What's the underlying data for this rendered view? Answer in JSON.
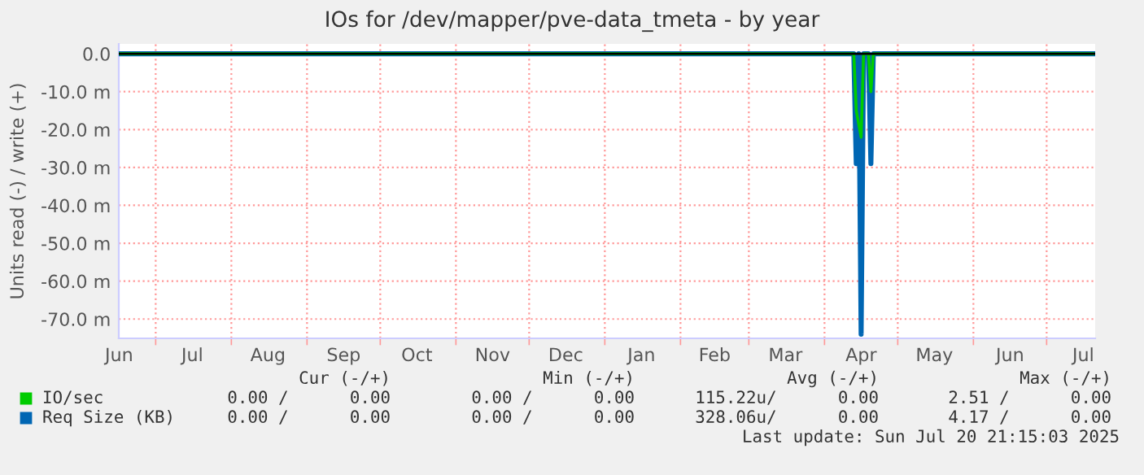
{
  "chart_data": {
    "type": "line",
    "title": "IOs for /dev/mapper/pve-data_tmeta - by year",
    "ylabel": "Units read (-) / write (+)",
    "xlim": [
      "2024-06-15T21:15",
      "2025-07-20T21:15"
    ],
    "xticks": [
      {
        "value": "2024-06-16",
        "label": "Jun"
      },
      {
        "value": "2024-07-01",
        "label": null
      },
      {
        "value": "2024-07-16",
        "label": "Jul"
      },
      {
        "value": "2024-08-01",
        "label": null
      },
      {
        "value": "2024-08-16",
        "label": "Aug"
      },
      {
        "value": "2024-09-01",
        "label": null
      },
      {
        "value": "2024-09-16",
        "label": "Sep"
      },
      {
        "value": "2024-10-01",
        "label": null
      },
      {
        "value": "2024-10-16",
        "label": "Oct"
      },
      {
        "value": "2024-11-01",
        "label": null
      },
      {
        "value": "2024-11-16",
        "label": "Nov"
      },
      {
        "value": "2024-12-01",
        "label": null
      },
      {
        "value": "2024-12-16",
        "label": "Dec"
      },
      {
        "value": "2025-01-01",
        "label": null
      },
      {
        "value": "2025-01-16",
        "label": "Jan"
      },
      {
        "value": "2025-02-01",
        "label": null
      },
      {
        "value": "2025-02-15",
        "label": "Feb"
      },
      {
        "value": "2025-03-01",
        "label": null
      },
      {
        "value": "2025-03-16",
        "label": "Mar"
      },
      {
        "value": "2025-04-01",
        "label": null
      },
      {
        "value": "2025-04-16",
        "label": "Apr"
      },
      {
        "value": "2025-05-01",
        "label": null
      },
      {
        "value": "2025-05-16",
        "label": "May"
      },
      {
        "value": "2025-06-01",
        "label": null
      },
      {
        "value": "2025-06-16",
        "label": "Jun"
      },
      {
        "value": "2025-07-01",
        "label": null
      },
      {
        "value": "2025-07-16",
        "label": "Jul"
      }
    ],
    "ylim": [
      -75.1,
      2.6
    ],
    "yticks": [
      {
        "value": 0,
        "label": "0.0"
      },
      {
        "value": -10,
        "label": "-10.0 m"
      },
      {
        "value": -20,
        "label": "-20.0 m"
      },
      {
        "value": -30,
        "label": "-30.0 m"
      },
      {
        "value": -40,
        "label": "-40.0 m"
      },
      {
        "value": -50,
        "label": "-50.0 m"
      },
      {
        "value": -60,
        "label": "-60.0 m"
      },
      {
        "value": -70,
        "label": "-70.0 m"
      }
    ],
    "grid": true,
    "legend": "bottom",
    "marker": "none",
    "line_style": "solid",
    "ref_lines": [
      {
        "axis": "y",
        "value": 0,
        "label": null,
        "color": "#000000"
      }
    ],
    "series": [
      {
        "name": "IO/sec",
        "color": "#00cc00",
        "x": [
          "2024-06-16",
          "2025-04-13",
          "2025-04-14",
          "2025-04-16",
          "2025-04-17",
          "2025-04-19",
          "2025-04-20",
          "2025-04-21",
          "2025-07-20"
        ],
        "values": [
          0,
          0,
          -15,
          -22,
          0,
          0,
          -10,
          0,
          0
        ]
      },
      {
        "name": "Req Size (KB)",
        "color": "#0066b3",
        "x": [
          "2024-06-16",
          "2025-04-13",
          "2025-04-14",
          "2025-04-15",
          "2025-04-16",
          "2025-04-17",
          "2025-04-19",
          "2025-04-20",
          "2025-04-21",
          "2025-07-20"
        ],
        "values": [
          0,
          0,
          -29,
          0,
          -74,
          0,
          0,
          -29,
          0,
          0
        ]
      }
    ],
    "annotations": [
      "Cur (-/+)",
      "Min (-/+)",
      "Avg (-/+)",
      "Max (-/+)",
      "0.00 /      0.00",
      "0.00 /      0.00",
      "115.22u/      0.00",
      "2.51 /      0.00",
      "0.00 /      0.00",
      "0.00 /      0.00",
      "328.06u/      0.00",
      "4.17 /      0.00",
      "Last update: Sun Jul 20 21:15:03 2025"
    ]
  }
}
